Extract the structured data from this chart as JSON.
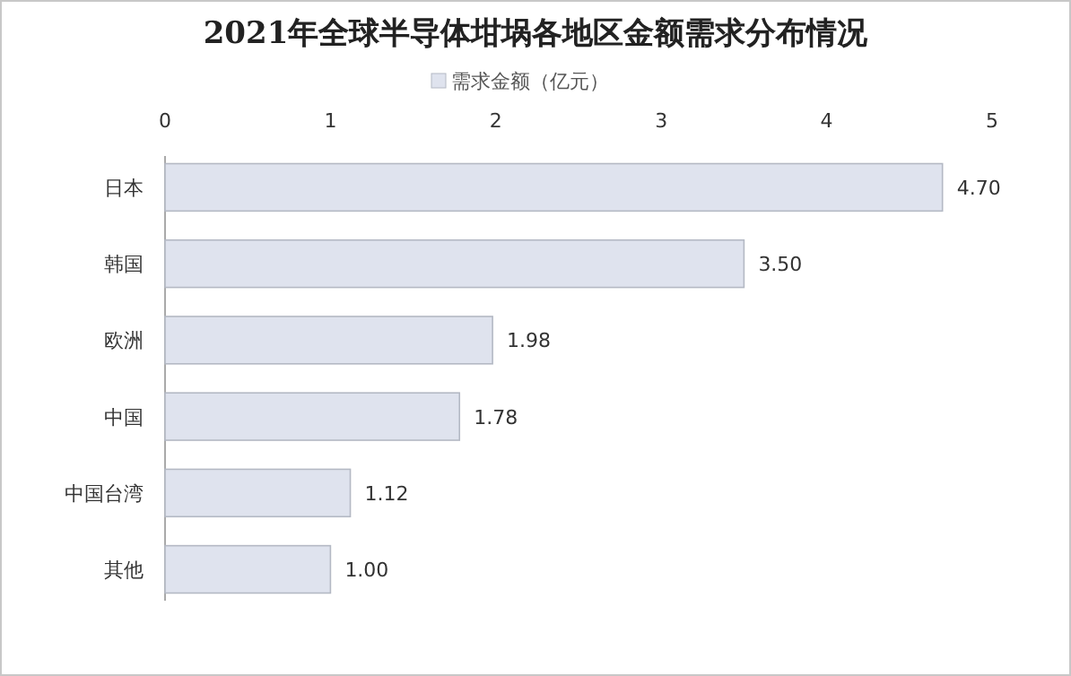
{
  "chart_data": {
    "type": "bar",
    "orientation": "horizontal",
    "title": "2021年全球半导体坩埚各地区金额需求分布情况",
    "categories": [
      "日本",
      "韩国",
      "欧洲",
      "中国",
      "中国台湾",
      "其他"
    ],
    "series": [
      {
        "name": "需求金额（亿元）",
        "color": "#dfe3ee",
        "values": [
          4.7,
          3.5,
          1.98,
          1.78,
          1.12,
          1.0
        ]
      }
    ],
    "xlim": [
      0,
      5
    ],
    "xticks": [
      0,
      1,
      2,
      3,
      4,
      5
    ],
    "value_labels": [
      "4.70",
      "3.50",
      "1.98",
      "1.78",
      "1.12",
      "1.00"
    ],
    "legend": "top",
    "grid": false
  }
}
